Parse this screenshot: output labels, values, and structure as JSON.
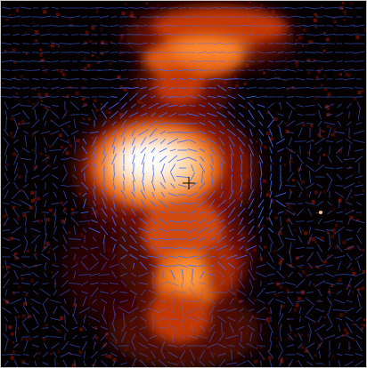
{
  "image": {
    "kind": "false-color astronomical polarization map",
    "colormap": [
      "#000000",
      "#2a0000",
      "#6b0a00",
      "#b32500",
      "#e85a10",
      "#ff9a40",
      "#ffd9a8",
      "#ffffff"
    ],
    "vector_color": "#3a6cff",
    "cross_marker_color": "#000000",
    "speckle_color": "#7a1200"
  }
}
